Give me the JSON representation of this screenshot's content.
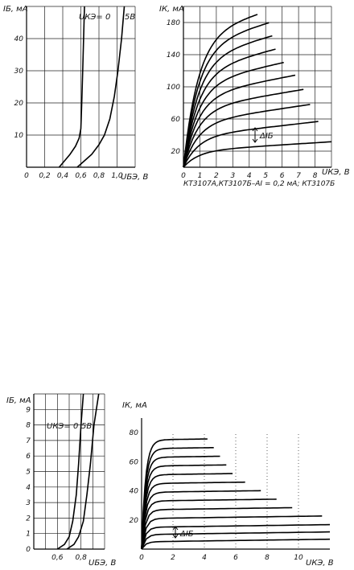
{
  "chart_data": [
    {
      "type": "line",
      "ylabel": "IБ, мА",
      "xlabel": "UБЭ, В",
      "xlim": [
        0,
        1.2
      ],
      "ylim": [
        0,
        50
      ],
      "xticks": [
        "0",
        "0,2",
        "0,4",
        "0,6",
        "0,8",
        "1,0"
      ],
      "yticks": [
        "10",
        "20",
        "30",
        "40"
      ],
      "annotations": [
        "UКЭ= 0",
        "5В"
      ],
      "series": [
        {
          "name": "UКЭ= 0",
          "x": [
            0.36,
            0.42,
            0.48,
            0.54,
            0.58,
            0.6,
            0.61,
            0.62,
            0.63,
            0.64
          ],
          "y": [
            0,
            2,
            4,
            6.5,
            9,
            12,
            20,
            30,
            40,
            50
          ]
        },
        {
          "name": "5В",
          "x": [
            0.56,
            0.64,
            0.72,
            0.8,
            0.86,
            0.92,
            0.97,
            1.01,
            1.05,
            1.08
          ],
          "y": [
            0,
            2,
            4,
            7,
            10,
            15,
            22,
            30,
            40,
            50
          ]
        }
      ]
    },
    {
      "type": "line",
      "ylabel": "IК, мА",
      "xlabel": "UКЭ, В",
      "xlim": [
        0,
        9
      ],
      "ylim": [
        0,
        200
      ],
      "xticks": [
        "0",
        "1",
        "2",
        "3",
        "4",
        "5",
        "6",
        "7",
        "8"
      ],
      "yticks": [
        "20",
        "60",
        "100",
        "140",
        "180"
      ],
      "annotations": [
        "ΔIБ"
      ],
      "caption": "КТ3107А,КТ3107Б–АI = 0,2 мА; КТ3107Б",
      "family": [
        {
          "sat": 20,
          "end": 9.0,
          "slope": 1.3
        },
        {
          "sat": 38,
          "end": 8.2,
          "slope": 2.3
        },
        {
          "sat": 55,
          "end": 7.7,
          "slope": 3.0
        },
        {
          "sat": 72,
          "end": 7.3,
          "slope": 3.4
        },
        {
          "sat": 88,
          "end": 6.8,
          "slope": 3.9
        },
        {
          "sat": 103,
          "end": 6.1,
          "slope": 4.5
        },
        {
          "sat": 118,
          "end": 5.6,
          "slope": 5.2
        },
        {
          "sat": 134,
          "end": 5.4,
          "slope": 5.5
        },
        {
          "sat": 150,
          "end": 5.2,
          "slope": 5.8
        },
        {
          "sat": 165,
          "end": 4.5,
          "slope": 5.8
        }
      ]
    },
    {
      "type": "line",
      "ylabel": "IБ, мА",
      "xlabel": "UБЭ, В",
      "xlim": [
        0.4,
        1.0
      ],
      "ylim": [
        0,
        10
      ],
      "xticks": [
        "0,6",
        "0,8"
      ],
      "yticks": [
        "0",
        "1",
        "2",
        "3",
        "4",
        "5",
        "6",
        "7",
        "8",
        "9"
      ],
      "annotations": [
        "UКЭ= 0",
        "5В"
      ],
      "series": [
        {
          "name": "UКЭ= 0",
          "x": [
            0.6,
            0.66,
            0.7,
            0.73,
            0.76,
            0.78,
            0.8,
            0.82
          ],
          "y": [
            0,
            0.3,
            0.8,
            1.8,
            3.5,
            5.5,
            8,
            10
          ]
        },
        {
          "name": "5В",
          "x": [
            0.68,
            0.74,
            0.78,
            0.82,
            0.85,
            0.88,
            0.91,
            0.95
          ],
          "y": [
            0,
            0.3,
            0.8,
            1.8,
            3.5,
            5.5,
            8,
            10
          ]
        }
      ]
    },
    {
      "type": "line",
      "ylabel": "IК, мА",
      "xlabel": "UКЭ, В",
      "xlim": [
        0,
        12
      ],
      "ylim": [
        0,
        90
      ],
      "xticks": [
        "0",
        "2",
        "4",
        "6",
        "8",
        "10"
      ],
      "yticks": [
        "20",
        "40",
        "60",
        "80"
      ],
      "annotations": [
        "ΔIБ"
      ],
      "family": [
        {
          "sat": 5,
          "end": 12.0
        },
        {
          "sat": 10,
          "end": 12.0
        },
        {
          "sat": 15,
          "end": 12.0
        },
        {
          "sat": 21,
          "end": 11.5
        },
        {
          "sat": 27,
          "end": 9.6
        },
        {
          "sat": 33,
          "end": 8.6
        },
        {
          "sat": 39,
          "end": 7.6
        },
        {
          "sat": 45,
          "end": 6.6
        },
        {
          "sat": 51,
          "end": 5.8
        },
        {
          "sat": 57,
          "end": 5.4
        },
        {
          "sat": 63,
          "end": 5.0
        },
        {
          "sat": 69,
          "end": 4.6
        },
        {
          "sat": 75,
          "end": 4.2
        }
      ]
    }
  ]
}
